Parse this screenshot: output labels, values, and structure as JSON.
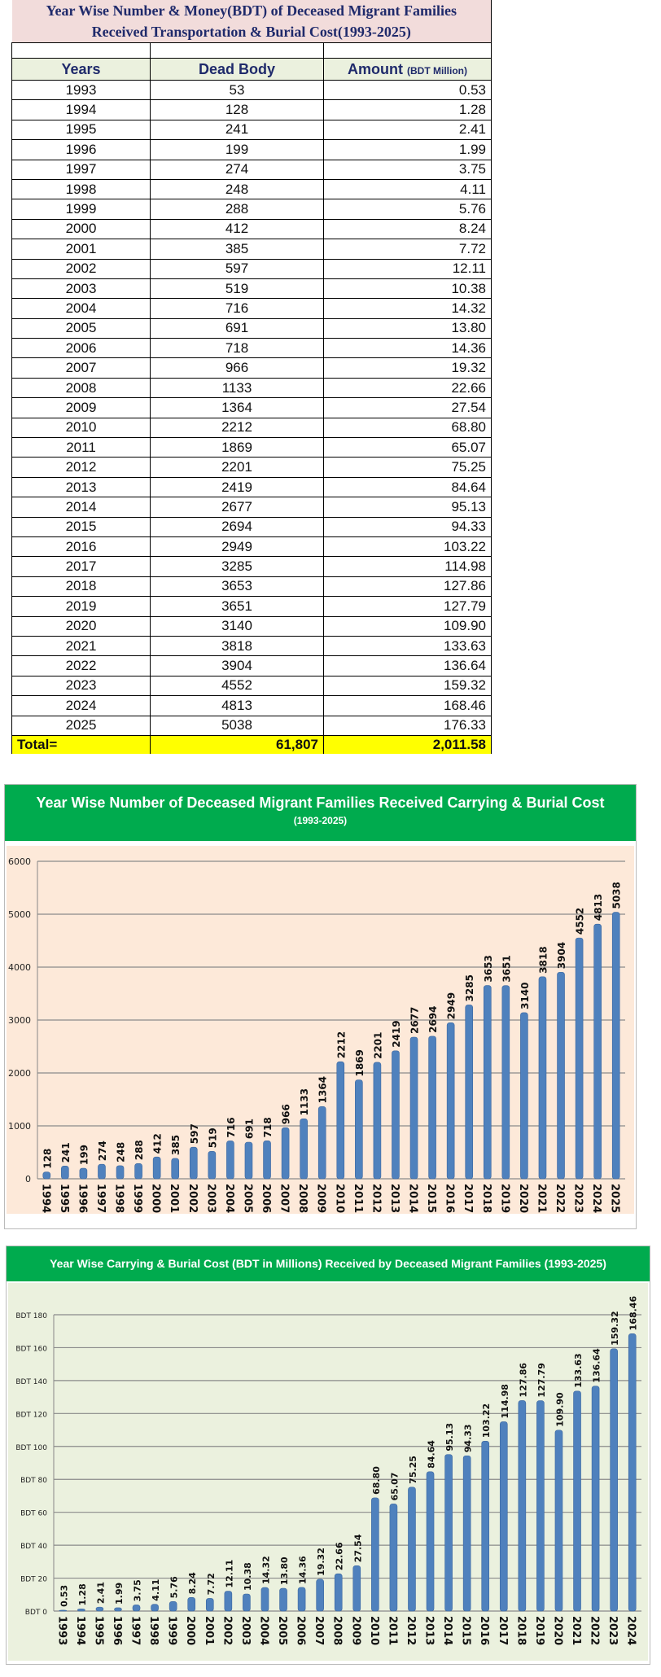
{
  "table": {
    "title_line1": "Year Wise Number & Money(BDT) of Deceased Migrant Families",
    "title_line2": "Received Transportation & Burial Cost(1993-2025)",
    "headers": {
      "years": "Years",
      "dead_body": "Dead Body",
      "amount": "Amount",
      "amount_unit": "(BDT Million)"
    },
    "rows": [
      [
        "1993",
        "53",
        "0.53"
      ],
      [
        "1994",
        "128",
        "1.28"
      ],
      [
        "1995",
        "241",
        "2.41"
      ],
      [
        "1996",
        "199",
        "1.99"
      ],
      [
        "1997",
        "274",
        "3.75"
      ],
      [
        "1998",
        "248",
        "4.11"
      ],
      [
        "1999",
        "288",
        "5.76"
      ],
      [
        "2000",
        "412",
        "8.24"
      ],
      [
        "2001",
        "385",
        "7.72"
      ],
      [
        "2002",
        "597",
        "12.11"
      ],
      [
        "2003",
        "519",
        "10.38"
      ],
      [
        "2004",
        "716",
        "14.32"
      ],
      [
        "2005",
        "691",
        "13.80"
      ],
      [
        "2006",
        "718",
        "14.36"
      ],
      [
        "2007",
        "966",
        "19.32"
      ],
      [
        "2008",
        "1133",
        "22.66"
      ],
      [
        "2009",
        "1364",
        "27.54"
      ],
      [
        "2010",
        "2212",
        "68.80"
      ],
      [
        "2011",
        "1869",
        "65.07"
      ],
      [
        "2012",
        "2201",
        "75.25"
      ],
      [
        "2013",
        "2419",
        "84.64"
      ],
      [
        "2014",
        "2677",
        "95.13"
      ],
      [
        "2015",
        "2694",
        "94.33"
      ],
      [
        "2016",
        "2949",
        "103.22"
      ],
      [
        "2017",
        "3285",
        "114.98"
      ],
      [
        "2018",
        "3653",
        "127.86"
      ],
      [
        "2019",
        "3651",
        "127.79"
      ],
      [
        "2020",
        "3140",
        "109.90"
      ],
      [
        "2021",
        "3818",
        "133.63"
      ],
      [
        "2022",
        "3904",
        "136.64"
      ],
      [
        "2023",
        "4552",
        "159.32"
      ],
      [
        "2024",
        "4813",
        "168.46"
      ],
      [
        "2025",
        "5038",
        "176.33"
      ]
    ],
    "total": {
      "label": "Total=",
      "dead_body": "61,807",
      "amount": "2,011.58"
    }
  },
  "chart_data": [
    {
      "type": "bar",
      "title": "Year Wise Number of Deceased Migrant Families Received Carrying & Burial Cost",
      "subtitle": "(1993-2025)",
      "categories": [
        "1994",
        "1995",
        "1996",
        "1997",
        "1998",
        "1999",
        "2000",
        "2001",
        "2002",
        "2003",
        "2004",
        "2005",
        "2006",
        "2007",
        "2008",
        "2009",
        "2010",
        "2011",
        "2012",
        "2013",
        "2014",
        "2015",
        "2016",
        "2017",
        "2018",
        "2019",
        "2020",
        "2021",
        "2022",
        "2023",
        "2024",
        "2025"
      ],
      "values": [
        128,
        241,
        199,
        274,
        248,
        288,
        412,
        385,
        597,
        519,
        716,
        691,
        718,
        966,
        1133,
        1364,
        2212,
        1869,
        2201,
        2419,
        2677,
        2694,
        2949,
        3285,
        3653,
        3651,
        3140,
        3818,
        3904,
        4552,
        4813,
        5038
      ],
      "yticks": [
        "0",
        "1000",
        "2000",
        "3000",
        "4000",
        "5000",
        "6000"
      ],
      "ylim": [
        0,
        6000
      ],
      "grid": true,
      "bar_color": "#4f81bd",
      "bg_color": "#fde9d9"
    },
    {
      "type": "bar",
      "title": "Year Wise Carrying & Burial Cost (BDT  in Millions) Received  by Deceased Migrant Families (1993-2025)",
      "categories": [
        "1993",
        "1994",
        "1995",
        "1996",
        "1997",
        "1998",
        "1999",
        "2000",
        "2001",
        "2002",
        "2003",
        "2004",
        "2005",
        "2006",
        "2007",
        "2008",
        "2009",
        "2010",
        "2011",
        "2012",
        "2013",
        "2014",
        "2015",
        "2016",
        "2017",
        "2018",
        "2019",
        "2020",
        "2021",
        "2022",
        "2023",
        "2024"
      ],
      "values": [
        0.53,
        1.28,
        2.41,
        1.99,
        3.75,
        4.11,
        5.76,
        8.24,
        7.72,
        12.11,
        10.38,
        14.32,
        13.8,
        14.36,
        19.32,
        22.66,
        27.54,
        68.8,
        65.07,
        75.25,
        84.64,
        95.13,
        94.33,
        103.22,
        114.98,
        127.86,
        127.79,
        109.9,
        133.63,
        136.64,
        159.32,
        168.46
      ],
      "labels": [
        "0.53",
        "1.28",
        "2.41",
        "1.99",
        "3.75",
        "4.11",
        "5.76",
        "8.24",
        "7.72",
        "12.11",
        "10.38",
        "14.32",
        "13.80",
        "14.36",
        "19.32",
        "22.66",
        "27.54",
        "68.80",
        "65.07",
        "75.25",
        "84.64",
        "95.13",
        "94.33",
        "103.22",
        "114.98",
        "127.86",
        "127.79",
        "109.90",
        "133.63",
        "136.64",
        "159.32",
        "168.46"
      ],
      "yticks": [
        "BDT 0",
        "BDT 20",
        "BDT 40",
        "BDT 60",
        "BDT 80",
        "BDT 100",
        "BDT 120",
        "BDT 140",
        "BDT 160",
        "BDT 180"
      ],
      "ylim": [
        0,
        180
      ],
      "grid": true,
      "bar_color": "#4f81bd",
      "bg_color": "#ebf1de"
    }
  ]
}
